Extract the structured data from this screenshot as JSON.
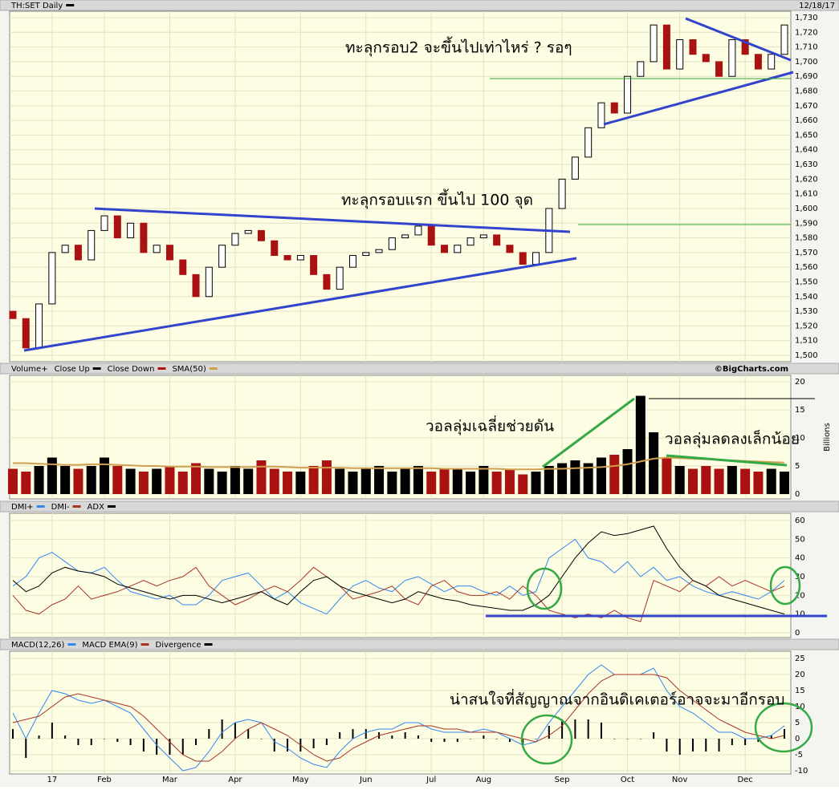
{
  "chart_data": [
    {
      "type": "candlestick",
      "title": "TH:SET Daily",
      "date": "12/18/17",
      "color": "#000000",
      "up_color": "#000000",
      "down_color": "#aa1111",
      "categories": [
        null,
        null,
        null,
        "17",
        null,
        null,
        null,
        "Feb",
        null,
        null,
        null,
        null,
        "Mar",
        null,
        null,
        null,
        null,
        "Apr",
        null,
        null,
        null,
        null,
        "May",
        null,
        null,
        null,
        null,
        "Jun",
        null,
        null,
        null,
        null,
        "Jul",
        null,
        null,
        null,
        "Aug",
        null,
        null,
        null,
        null,
        null,
        "Sep",
        null,
        null,
        null,
        null,
        "Oct",
        null,
        null,
        null,
        "Nov",
        null,
        null,
        null,
        null,
        "Dec",
        null,
        null,
        null
      ],
      "open": [
        1530,
        1525,
        1505,
        1535,
        1570,
        1575,
        1565,
        1585,
        1595,
        1580,
        1590,
        1570,
        1575,
        1565,
        1555,
        1540,
        1560,
        1575,
        1583,
        1585,
        1578,
        1568,
        1565,
        1568,
        1555,
        1545,
        1560,
        1568,
        1570,
        1572,
        1580,
        1582,
        1588,
        1575,
        1570,
        1575,
        1580,
        1582,
        1575,
        1570,
        1562,
        1570,
        1600,
        1620,
        1635,
        1655,
        1672,
        1665,
        1690,
        1700,
        1725,
        1695,
        1715,
        1705,
        1700,
        1690,
        1715,
        1705,
        1695,
        1705
      ],
      "close": [
        1525,
        1505,
        1535,
        1570,
        1575,
        1565,
        1585,
        1595,
        1580,
        1590,
        1570,
        1575,
        1565,
        1555,
        1540,
        1560,
        1575,
        1583,
        1585,
        1578,
        1568,
        1565,
        1568,
        1555,
        1545,
        1560,
        1568,
        1570,
        1572,
        1580,
        1582,
        1588,
        1575,
        1570,
        1575,
        1580,
        1582,
        1575,
        1570,
        1562,
        1570,
        1600,
        1620,
        1635,
        1655,
        1672,
        1665,
        1690,
        1700,
        1725,
        1695,
        1715,
        1705,
        1700,
        1690,
        1715,
        1705,
        1695,
        1705,
        1725
      ],
      "ylim": [
        1500,
        1730
      ],
      "yticks": [
        {
          "value": 1500,
          "label": "1,500"
        },
        {
          "value": 1510,
          "label": "1,510"
        },
        {
          "value": 1520,
          "label": "1,520"
        },
        {
          "value": 1530,
          "label": "1,530"
        },
        {
          "value": 1540,
          "label": "1,540"
        },
        {
          "value": 1550,
          "label": "1,550"
        },
        {
          "value": 1560,
          "label": "1,560"
        },
        {
          "value": 1570,
          "label": "1,570"
        },
        {
          "value": 1580,
          "label": "1,580"
        },
        {
          "value": 1590,
          "label": "1,590"
        },
        {
          "value": 1600,
          "label": "1,600"
        },
        {
          "value": 1610,
          "label": "1,610"
        },
        {
          "value": 1620,
          "label": "1,620"
        },
        {
          "value": 1630,
          "label": "1,630"
        },
        {
          "value": 1640,
          "label": "1,640"
        },
        {
          "value": 1650,
          "label": "1,650"
        },
        {
          "value": 1660,
          "label": "1,660"
        },
        {
          "value": 1670,
          "label": "1,670"
        },
        {
          "value": 1680,
          "label": "1,680"
        },
        {
          "value": 1690,
          "label": "1,690"
        },
        {
          "value": 1700,
          "label": "1,700"
        },
        {
          "value": 1710,
          "label": "1,710"
        },
        {
          "value": 1720,
          "label": "1,720"
        },
        {
          "value": 1730,
          "label": "1,730"
        }
      ],
      "grid": true,
      "annotations": [
        "ทะลุกรอบ2 จะขึ้นไปเท่าไหร่ ? รอๆ",
        "ทะลุกรอบแรก ขึ้นไป 100 จุด"
      ]
    },
    {
      "type": "volume",
      "title": "Volume+",
      "credit": "©BigCharts.com",
      "ylabel": "Billions",
      "legend": [
        {
          "name": "Close Up",
          "color": "#000000"
        },
        {
          "name": "Close Down",
          "color": "#aa1111"
        },
        {
          "name": "SMA(50)",
          "color": "#d0a050"
        }
      ],
      "values": [
        4.5,
        4,
        5,
        6.5,
        5,
        4.5,
        5,
        6.5,
        5,
        4.5,
        4,
        4.5,
        5,
        4,
        5.5,
        4.5,
        4,
        5,
        4.5,
        6,
        4.5,
        4,
        4,
        5,
        6,
        4.5,
        4,
        4.5,
        5,
        4,
        4.5,
        5,
        4,
        4.5,
        4.5,
        4,
        5,
        4,
        4.5,
        3.5,
        4,
        5,
        5.5,
        6,
        5.5,
        6.5,
        7,
        8,
        17.5,
        11,
        6.5,
        5,
        4.5,
        5,
        4.5,
        5,
        4.5,
        4,
        4.5,
        4
      ],
      "sma": [
        5.5,
        5.5,
        5.4,
        5.3,
        5.2,
        5.2,
        5.3,
        5.3,
        5.2,
        5.1,
        5,
        5,
        4.9,
        4.9,
        4.9,
        4.8,
        4.8,
        4.8,
        4.8,
        4.9,
        4.9,
        4.8,
        4.7,
        4.7,
        4.7,
        4.7,
        4.6,
        4.6,
        4.6,
        4.6,
        4.6,
        4.6,
        4.6,
        4.5,
        4.5,
        4.5,
        4.5,
        4.5,
        4.4,
        4.4,
        4.4,
        4.5,
        4.5,
        4.6,
        4.7,
        4.8,
        5,
        5.3,
        5.8,
        6.3,
        6.5,
        6.4,
        6.3,
        6.2,
        6.1,
        6,
        5.9,
        5.8,
        5.7,
        5.6
      ],
      "ylim": [
        0,
        20
      ],
      "yticks": [
        0,
        5,
        10,
        15,
        20
      ],
      "grid": true,
      "annotations": [
        "วอลลุ่มเฉลี่ยช่วยดัน",
        "วอลลุ่มลดลงเล็กน้อย"
      ]
    },
    {
      "type": "line",
      "series": [
        {
          "name": "DMI+",
          "color": "#3388ee",
          "values": [
            25,
            30,
            40,
            43,
            38,
            33,
            32,
            35,
            28,
            22,
            20,
            18,
            20,
            15,
            15,
            20,
            28,
            30,
            32,
            25,
            18,
            22,
            16,
            13,
            10,
            18,
            25,
            28,
            24,
            22,
            28,
            30,
            26,
            22,
            25,
            25,
            22,
            20,
            25,
            20,
            22,
            40,
            45,
            50,
            40,
            38,
            32,
            38,
            30,
            35,
            28,
            30,
            25,
            22,
            20,
            22,
            20,
            18,
            22,
            28
          ]
        },
        {
          "name": "DMI-",
          "color": "#aa3322",
          "values": [
            20,
            12,
            10,
            15,
            18,
            25,
            18,
            20,
            22,
            25,
            28,
            25,
            28,
            30,
            35,
            25,
            20,
            15,
            18,
            22,
            25,
            22,
            28,
            35,
            30,
            25,
            18,
            20,
            22,
            25,
            18,
            15,
            25,
            28,
            22,
            20,
            20,
            22,
            18,
            25,
            20,
            12,
            10,
            8,
            10,
            8,
            12,
            8,
            6,
            28,
            25,
            22,
            28,
            25,
            30,
            25,
            28,
            25,
            22,
            25
          ]
        },
        {
          "name": "ADX",
          "color": "#000000",
          "values": [
            28,
            22,
            25,
            32,
            35,
            33,
            32,
            30,
            26,
            24,
            22,
            20,
            18,
            20,
            20,
            18,
            16,
            18,
            20,
            22,
            18,
            15,
            22,
            28,
            30,
            25,
            22,
            20,
            18,
            16,
            18,
            22,
            20,
            18,
            17,
            15,
            14,
            13,
            12,
            12,
            15,
            20,
            30,
            40,
            48,
            54,
            52,
            53,
            55,
            57,
            45,
            35,
            28,
            25,
            20,
            18,
            16,
            14,
            12,
            10
          ]
        }
      ],
      "ylim": [
        0,
        60
      ],
      "yticks": [
        0,
        10,
        20,
        30,
        40,
        50,
        60
      ],
      "grid": true
    },
    {
      "type": "macd",
      "series": [
        {
          "name": "MACD(12,26)",
          "color": "#3388ee",
          "values": [
            8,
            0,
            8,
            15,
            14,
            12,
            11,
            12,
            10,
            8,
            3,
            -2,
            -6,
            -10,
            -9,
            -4,
            2,
            5,
            6,
            5,
            -1,
            -3,
            -6,
            -8,
            -9,
            -4,
            0,
            2,
            3,
            3,
            5,
            5,
            3,
            2,
            2,
            2,
            3,
            2,
            0,
            -2,
            -1,
            5,
            10,
            15,
            20,
            23,
            20,
            20,
            20,
            22,
            15,
            10,
            8,
            5,
            2,
            2,
            0,
            0,
            1,
            4
          ]
        },
        {
          "name": "MACD EMA(9)",
          "color": "#aa3322",
          "values": [
            5,
            6,
            7,
            10,
            13,
            14,
            13,
            12,
            11,
            10,
            7,
            3,
            -1,
            -5,
            -7,
            -7,
            -4,
            0,
            3,
            5,
            3,
            1,
            -2,
            -5,
            -7,
            -6,
            -3,
            -1,
            1,
            2,
            3,
            4,
            4,
            3,
            3,
            2,
            2,
            2,
            1,
            0,
            -1,
            1,
            4,
            9,
            14,
            18,
            20,
            20,
            20,
            20,
            19,
            15,
            12,
            9,
            6,
            4,
            2,
            1,
            0,
            1
          ]
        },
        {
          "name": "Divergence",
          "color": "#000000",
          "values": [
            3,
            -6,
            1,
            5,
            1,
            -2,
            -2,
            0,
            -1,
            -2,
            -4,
            -5,
            -5,
            -5,
            -2,
            3,
            6,
            5,
            3,
            0,
            -4,
            -4,
            -4,
            -3,
            -2,
            2,
            3,
            3,
            2,
            1,
            2,
            1,
            -1,
            -1,
            -1,
            0,
            1,
            0,
            -1,
            -2,
            0,
            4,
            6,
            6,
            6,
            5,
            0,
            0,
            0,
            2,
            -4,
            -5,
            -4,
            -4,
            -4,
            -2,
            -2,
            -1,
            1,
            3
          ]
        }
      ],
      "ylim": [
        -10,
        25
      ],
      "yticks": [
        -10,
        -5,
        0,
        5,
        10,
        15,
        20,
        25
      ],
      "grid": true,
      "annotations": [
        "น่าสนใจที่สัญญาณจากอินดิเคเตอร์อาจจะมาอีกรอบ"
      ]
    }
  ]
}
